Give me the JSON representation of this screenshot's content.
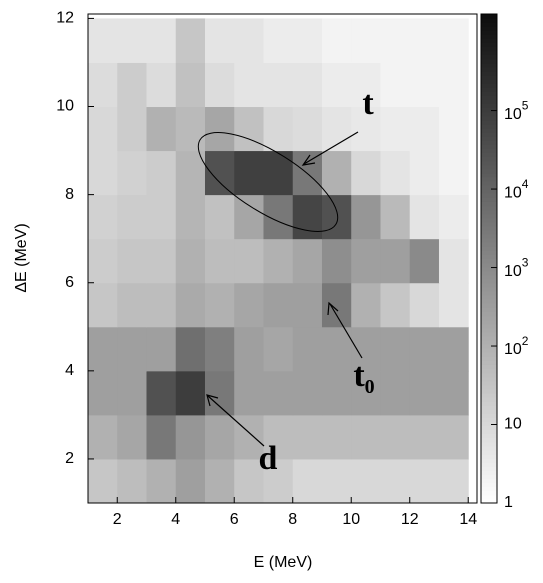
{
  "chart_data": {
    "type": "heatmap",
    "xlabel": "E (MeV)",
    "ylabel": "ΔE (MeV)",
    "x_bins": [
      1,
      2,
      3,
      4,
      5,
      6,
      7,
      8,
      9,
      10,
      11,
      12,
      13,
      14
    ],
    "y_bins": [
      1,
      2,
      3,
      4,
      5,
      6,
      7,
      8,
      9,
      10,
      11,
      12
    ],
    "z": [
      [
        30,
        50,
        100,
        300,
        100,
        30,
        20,
        10,
        10,
        10,
        10,
        10,
        10
      ],
      [
        100,
        200,
        3000,
        500,
        200,
        100,
        50,
        50,
        50,
        50,
        50,
        50,
        50
      ],
      [
        300,
        300,
        30000,
        100000,
        3000,
        300,
        300,
        300,
        300,
        300,
        300,
        300,
        300
      ],
      [
        300,
        300,
        300,
        5000,
        2000,
        300,
        200,
        300,
        300,
        300,
        300,
        300,
        300
      ],
      [
        30,
        50,
        50,
        150,
        100,
        200,
        300,
        300,
        3000,
        100,
        30,
        10,
        5
      ],
      [
        20,
        30,
        30,
        100,
        50,
        50,
        100,
        200,
        800,
        300,
        300,
        1000,
        5
      ],
      [
        15,
        20,
        20,
        80,
        40,
        200,
        3000,
        60000,
        30000,
        500,
        60,
        5,
        3
      ],
      [
        10,
        15,
        20,
        80,
        30000,
        80000,
        80000,
        3000,
        100,
        10,
        5,
        3,
        2
      ],
      [
        10,
        20,
        100,
        60,
        200,
        40,
        10,
        8,
        5,
        4,
        3,
        3,
        2
      ],
      [
        8,
        20,
        8,
        40,
        8,
        5,
        5,
        5,
        3,
        3,
        2,
        2,
        2
      ],
      [
        5,
        5,
        5,
        30,
        5,
        5,
        3,
        3,
        2,
        2,
        2,
        2,
        2
      ]
    ],
    "xlim": [
      1,
      14.3
    ],
    "ylim": [
      1,
      12.1
    ],
    "xticks": [
      2,
      4,
      6,
      8,
      10,
      12,
      14
    ],
    "yticks": [
      2,
      4,
      6,
      8,
      10,
      12
    ],
    "zlim": [
      1,
      1700000
    ],
    "zscale": "log",
    "zticks": [
      1,
      10,
      {
        "value": 100,
        "label": "10^2"
      },
      {
        "value": 1000,
        "label": "10^3"
      },
      {
        "value": 10000,
        "label": "10^4"
      },
      {
        "value": 100000,
        "label": "10^5"
      }
    ],
    "annotations": [
      "t",
      "t0",
      "d"
    ]
  }
}
